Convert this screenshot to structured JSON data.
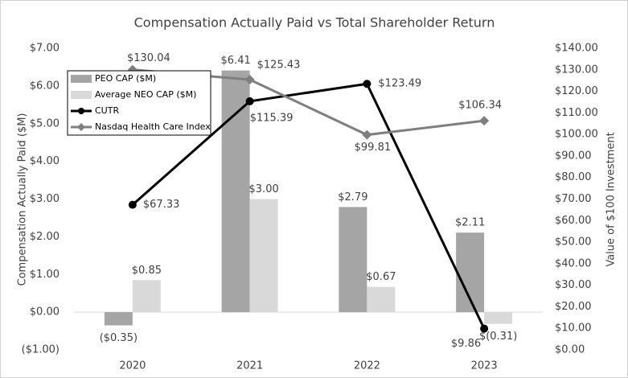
{
  "chart_data": {
    "type": "bar-line",
    "title": "Compensation Actually Paid vs Total Shareholder Return",
    "y_label": "Compensation Actually Paid ($M)",
    "y2_label": "Value of $100 Investment",
    "categories": [
      "2020",
      "2021",
      "2022",
      "2023"
    ],
    "ylim": [
      -1,
      7
    ],
    "yticks": [
      {
        "value": -1,
        "label": "($1.00)"
      },
      {
        "value": 0,
        "label": "$0.00"
      },
      {
        "value": 1,
        "label": "$1.00"
      },
      {
        "value": 2,
        "label": "$2.00"
      },
      {
        "value": 3,
        "label": "$3.00"
      },
      {
        "value": 4,
        "label": "$4.00"
      },
      {
        "value": 5,
        "label": "$5.00"
      },
      {
        "value": 6,
        "label": "$6.00"
      },
      {
        "value": 7,
        "label": "$7.00"
      }
    ],
    "y2lim": [
      0,
      140
    ],
    "y2ticks": [
      {
        "value": 0,
        "label": "$0.00"
      },
      {
        "value": 10,
        "label": "$10.00"
      },
      {
        "value": 20,
        "label": "$20.00"
      },
      {
        "value": 30,
        "label": "$30.00"
      },
      {
        "value": 40,
        "label": "$40.00"
      },
      {
        "value": 50,
        "label": "$50.00"
      },
      {
        "value": 60,
        "label": "$60.00"
      },
      {
        "value": 70,
        "label": "$70.00"
      },
      {
        "value": 80,
        "label": "$80.00"
      },
      {
        "value": 90,
        "label": "$90.00"
      },
      {
        "value": 100,
        "label": "$100.00"
      },
      {
        "value": 110,
        "label": "$110.00"
      },
      {
        "value": 120,
        "label": "$120.00"
      },
      {
        "value": 130,
        "label": "$130.00"
      },
      {
        "value": 140,
        "label": "$140.00"
      }
    ],
    "legend": "upper left",
    "series": [
      {
        "name": "PEO CAP ($M)",
        "type": "bar",
        "color": "#a5a5a5",
        "values": [
          -0.35,
          6.41,
          2.79,
          2.11
        ],
        "value_labels": [
          "($0.35)",
          "$6.41",
          "$2.79",
          "$2.11"
        ]
      },
      {
        "name": "Average NEO CAP ($M)",
        "type": "bar",
        "color": "#d9d9d9",
        "values": [
          0.85,
          3.0,
          0.67,
          -0.31
        ],
        "value_labels": [
          "$0.85",
          "$3.00",
          "$0.67",
          "$(0.31)"
        ]
      },
      {
        "name": "CUTR",
        "type": "line",
        "axis": "y2",
        "color": "#000000",
        "marker": "circle",
        "values": [
          67.33,
          115.39,
          123.49,
          9.86
        ],
        "value_labels": [
          "$67.33",
          "$115.39",
          "$123.49",
          "$9.86"
        ]
      },
      {
        "name": "Nasdaq Health Care Index",
        "type": "line",
        "axis": "y2",
        "color": "#7f7f7f",
        "marker": "diamond",
        "values": [
          130.04,
          125.43,
          99.81,
          106.34
        ],
        "value_labels": [
          "$130.04",
          "$125.43",
          "$99.81",
          "$106.34"
        ]
      }
    ]
  }
}
